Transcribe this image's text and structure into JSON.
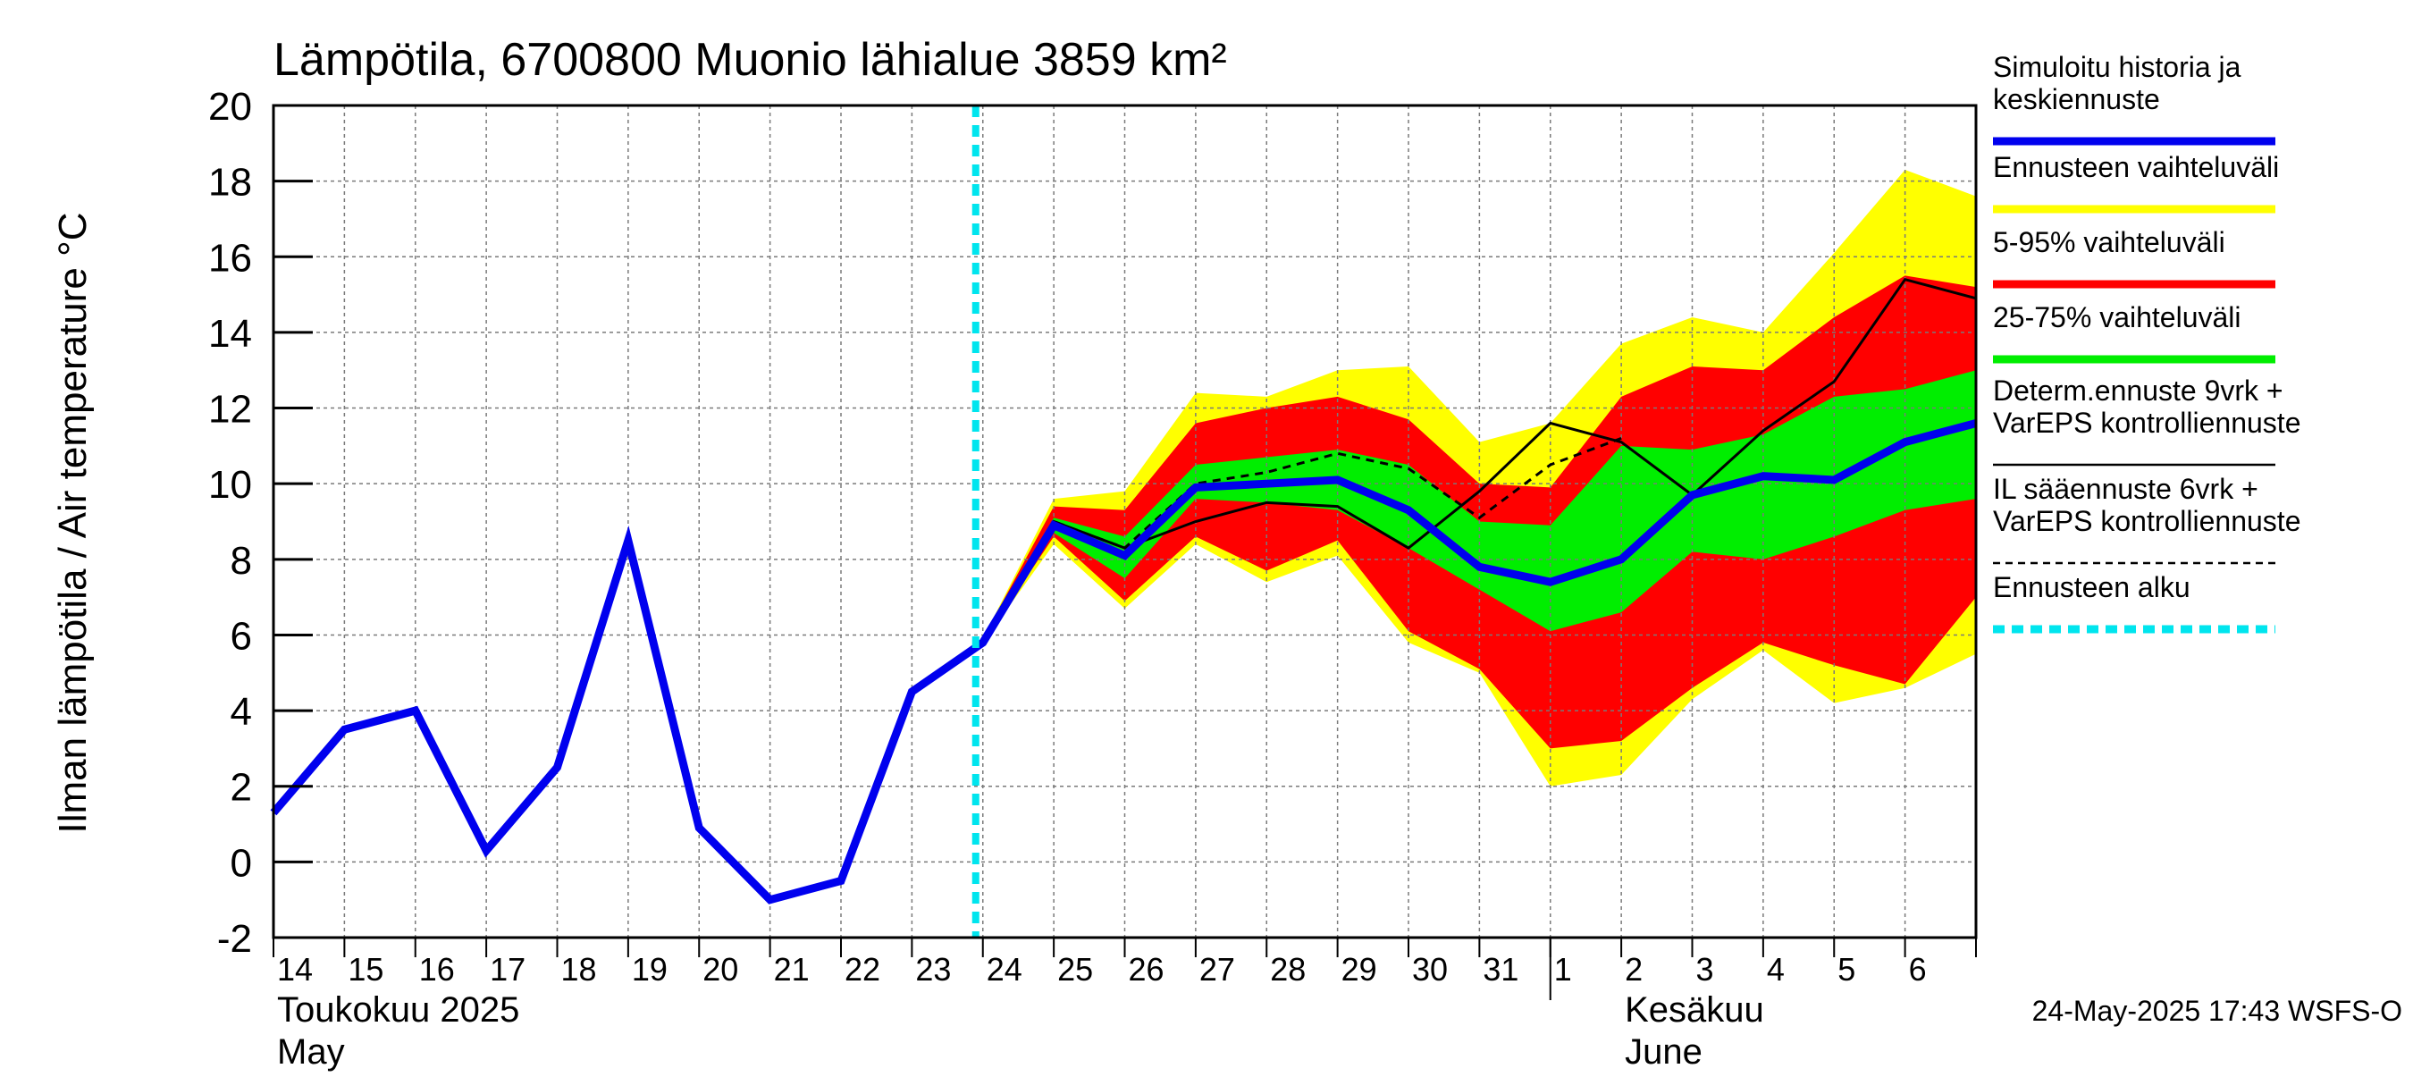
{
  "chart_data": {
    "type": "area",
    "title": "Lämpötila, 6700800 Muonio lähialue 3859 km²",
    "ylabel": "Ilman lämpötila / Air temperature   °C",
    "ylim": [
      -2,
      20
    ],
    "yticks": [
      -2,
      0,
      2,
      4,
      6,
      8,
      10,
      12,
      14,
      16,
      18,
      20
    ],
    "grid": true,
    "x_start": "2025-05-14",
    "x_end": "2025-06-07",
    "x_tick_labels": [
      "14",
      "15",
      "16",
      "17",
      "18",
      "19",
      "20",
      "21",
      "22",
      "23",
      "24",
      "25",
      "26",
      "27",
      "28",
      "29",
      "30",
      "31",
      "1",
      "2",
      "3",
      "4",
      "5",
      "6"
    ],
    "month_labels": [
      {
        "line1": "Toukokuu  2025",
        "line2": "May",
        "start": "2025-05-14"
      },
      {
        "line1": "Kesäkuu",
        "line2": "June",
        "start": "2025-06-02"
      }
    ],
    "month_separator": "2025-06-01",
    "forecast_start": "2025-05-24",
    "legend_placement": "right",
    "colors": {
      "simulated": "#0000ee",
      "range_full": "#ffff00",
      "range_5_95": "#ff0000",
      "range_25_75": "#00ee00",
      "determ": "#000000",
      "il_forecast": "#000000",
      "forecast_start": "#00e5ee"
    },
    "series": [
      {
        "name": "Simuloitu historia ja keskiennuste",
        "key": "simulated",
        "x": [
          "2025-05-14",
          "2025-05-15",
          "2025-05-16",
          "2025-05-17",
          "2025-05-18",
          "2025-05-19",
          "2025-05-20",
          "2025-05-21",
          "2025-05-22",
          "2025-05-23",
          "2025-05-24",
          "2025-05-25",
          "2025-05-26",
          "2025-05-27",
          "2025-05-28",
          "2025-05-29",
          "2025-05-30",
          "2025-05-31",
          "2025-06-01",
          "2025-06-02",
          "2025-06-03",
          "2025-06-04",
          "2025-06-05",
          "2025-06-06",
          "2025-06-07"
        ],
        "values": [
          1.3,
          3.5,
          4.0,
          0.3,
          2.5,
          8.5,
          0.9,
          -1.0,
          -0.5,
          4.5,
          5.8,
          8.9,
          8.1,
          9.9,
          10.0,
          10.1,
          9.3,
          7.8,
          7.4,
          8.0,
          9.7,
          10.2,
          10.1,
          11.1,
          11.6
        ]
      },
      {
        "name": "Determ.ennuste 9vrk + VarEPS kontrolliennuste",
        "key": "determ",
        "x": [
          "2025-05-24",
          "2025-05-25",
          "2025-05-26",
          "2025-05-27",
          "2025-05-28",
          "2025-05-29",
          "2025-05-30",
          "2025-05-31",
          "2025-06-01",
          "2025-06-02",
          "2025-06-03",
          "2025-06-04",
          "2025-06-05",
          "2025-06-06",
          "2025-06-07"
        ],
        "values": [
          5.8,
          9.0,
          8.3,
          9.0,
          9.5,
          9.4,
          8.3,
          9.8,
          11.6,
          11.1,
          9.7,
          11.4,
          12.7,
          15.4,
          14.9
        ]
      },
      {
        "name": "IL sääennuste 6vrk + VarEPS kontrolliennuste",
        "key": "il_forecast",
        "x": [
          "2025-05-24",
          "2025-05-25",
          "2025-05-26",
          "2025-05-27",
          "2025-05-28",
          "2025-05-29",
          "2025-05-30",
          "2025-05-31",
          "2025-06-01",
          "2025-06-02"
        ],
        "values": [
          5.8,
          9.0,
          8.3,
          10.0,
          10.3,
          10.8,
          10.4,
          9.1,
          10.5,
          11.2
        ]
      }
    ],
    "bands": [
      {
        "name": "Ennusteen vaihteluväli",
        "key": "range_full",
        "x": [
          "2025-05-24",
          "2025-05-25",
          "2025-05-26",
          "2025-05-27",
          "2025-05-28",
          "2025-05-29",
          "2025-05-30",
          "2025-05-31",
          "2025-06-01",
          "2025-06-02",
          "2025-06-03",
          "2025-06-04",
          "2025-06-05",
          "2025-06-06",
          "2025-06-07"
        ],
        "low": [
          5.8,
          8.4,
          6.7,
          8.4,
          7.4,
          8.1,
          5.8,
          5.0,
          2.0,
          2.3,
          4.3,
          5.6,
          4.2,
          4.6,
          5.5
        ],
        "high": [
          5.9,
          9.6,
          9.8,
          12.4,
          12.3,
          13.0,
          13.1,
          11.1,
          11.6,
          13.7,
          14.4,
          14.0,
          16.1,
          18.3,
          17.6
        ]
      },
      {
        "name": "5-95% vaihteluväli",
        "key": "range_5_95",
        "x": [
          "2025-05-24",
          "2025-05-25",
          "2025-05-26",
          "2025-05-27",
          "2025-05-28",
          "2025-05-29",
          "2025-05-30",
          "2025-05-31",
          "2025-06-01",
          "2025-06-02",
          "2025-06-03",
          "2025-06-04",
          "2025-06-05",
          "2025-06-06",
          "2025-06-07"
        ],
        "low": [
          5.8,
          8.6,
          6.9,
          8.6,
          7.7,
          8.5,
          6.1,
          5.1,
          3.0,
          3.2,
          4.6,
          5.8,
          5.2,
          4.7,
          7.0
        ],
        "high": [
          5.9,
          9.4,
          9.3,
          11.6,
          12.0,
          12.3,
          11.7,
          10.0,
          9.9,
          12.3,
          13.1,
          13.0,
          14.4,
          15.5,
          15.2
        ]
      },
      {
        "name": "25-75% vaihteluväli",
        "key": "range_25_75",
        "x": [
          "2025-05-24",
          "2025-05-25",
          "2025-05-26",
          "2025-05-27",
          "2025-05-28",
          "2025-05-29",
          "2025-05-30",
          "2025-05-31",
          "2025-06-01",
          "2025-06-02",
          "2025-06-03",
          "2025-06-04",
          "2025-06-05",
          "2025-06-06",
          "2025-06-07"
        ],
        "low": [
          5.8,
          8.7,
          7.5,
          9.6,
          9.5,
          9.3,
          8.3,
          7.2,
          6.1,
          6.6,
          8.2,
          8.0,
          8.6,
          9.3,
          9.6
        ],
        "high": [
          5.9,
          9.1,
          8.6,
          10.5,
          10.7,
          10.9,
          10.5,
          9.0,
          8.9,
          11.0,
          10.9,
          11.3,
          12.3,
          12.5,
          13.0
        ]
      }
    ],
    "legend": [
      {
        "lines": [
          "Simuloitu historia ja",
          "keskiennuste"
        ],
        "key": "simulated",
        "style": "thick"
      },
      {
        "lines": [
          "Ennusteen vaihteluväli"
        ],
        "key": "range_full",
        "style": "thick"
      },
      {
        "lines": [
          "5-95% vaihteluväli"
        ],
        "key": "range_5_95",
        "style": "thick"
      },
      {
        "lines": [
          "25-75% vaihteluväli"
        ],
        "key": "range_25_75",
        "style": "thick"
      },
      {
        "lines": [
          "Determ.ennuste 9vrk +",
          "VarEPS kontrolliennuste"
        ],
        "key": "determ",
        "style": "thin"
      },
      {
        "lines": [
          "IL sääennuste 6vrk  +",
          "  VarEPS kontrolliennuste"
        ],
        "key": "il_forecast",
        "style": "dashed"
      },
      {
        "lines": [
          "Ennusteen alku"
        ],
        "key": "forecast_start",
        "style": "cyan-dashed"
      }
    ],
    "footer": "24-May-2025 17:43 WSFS-O"
  }
}
